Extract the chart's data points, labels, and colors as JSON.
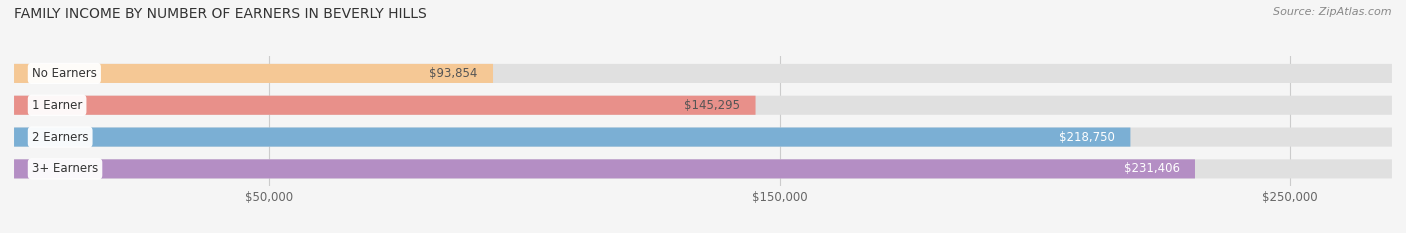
{
  "title": "FAMILY INCOME BY NUMBER OF EARNERS IN BEVERLY HILLS",
  "source": "Source: ZipAtlas.com",
  "categories": [
    "No Earners",
    "1 Earner",
    "2 Earners",
    "3+ Earners"
  ],
  "values": [
    93854,
    145295,
    218750,
    231406
  ],
  "bar_colors": [
    "#f5c895",
    "#e8908a",
    "#7bafd4",
    "#b48ec4"
  ],
  "bar_bg_color": "#e0e0e0",
  "label_colors": [
    "#555555",
    "#555555",
    "#ffffff",
    "#ffffff"
  ],
  "xmax": 270000,
  "xticks": [
    50000,
    150000,
    250000
  ],
  "xtick_labels": [
    "$50,000",
    "$150,000",
    "$250,000"
  ],
  "background_color": "#f5f5f5",
  "title_fontsize": 10,
  "source_fontsize": 8,
  "bar_label_fontsize": 8.5,
  "category_fontsize": 8.5,
  "tick_fontsize": 8.5
}
